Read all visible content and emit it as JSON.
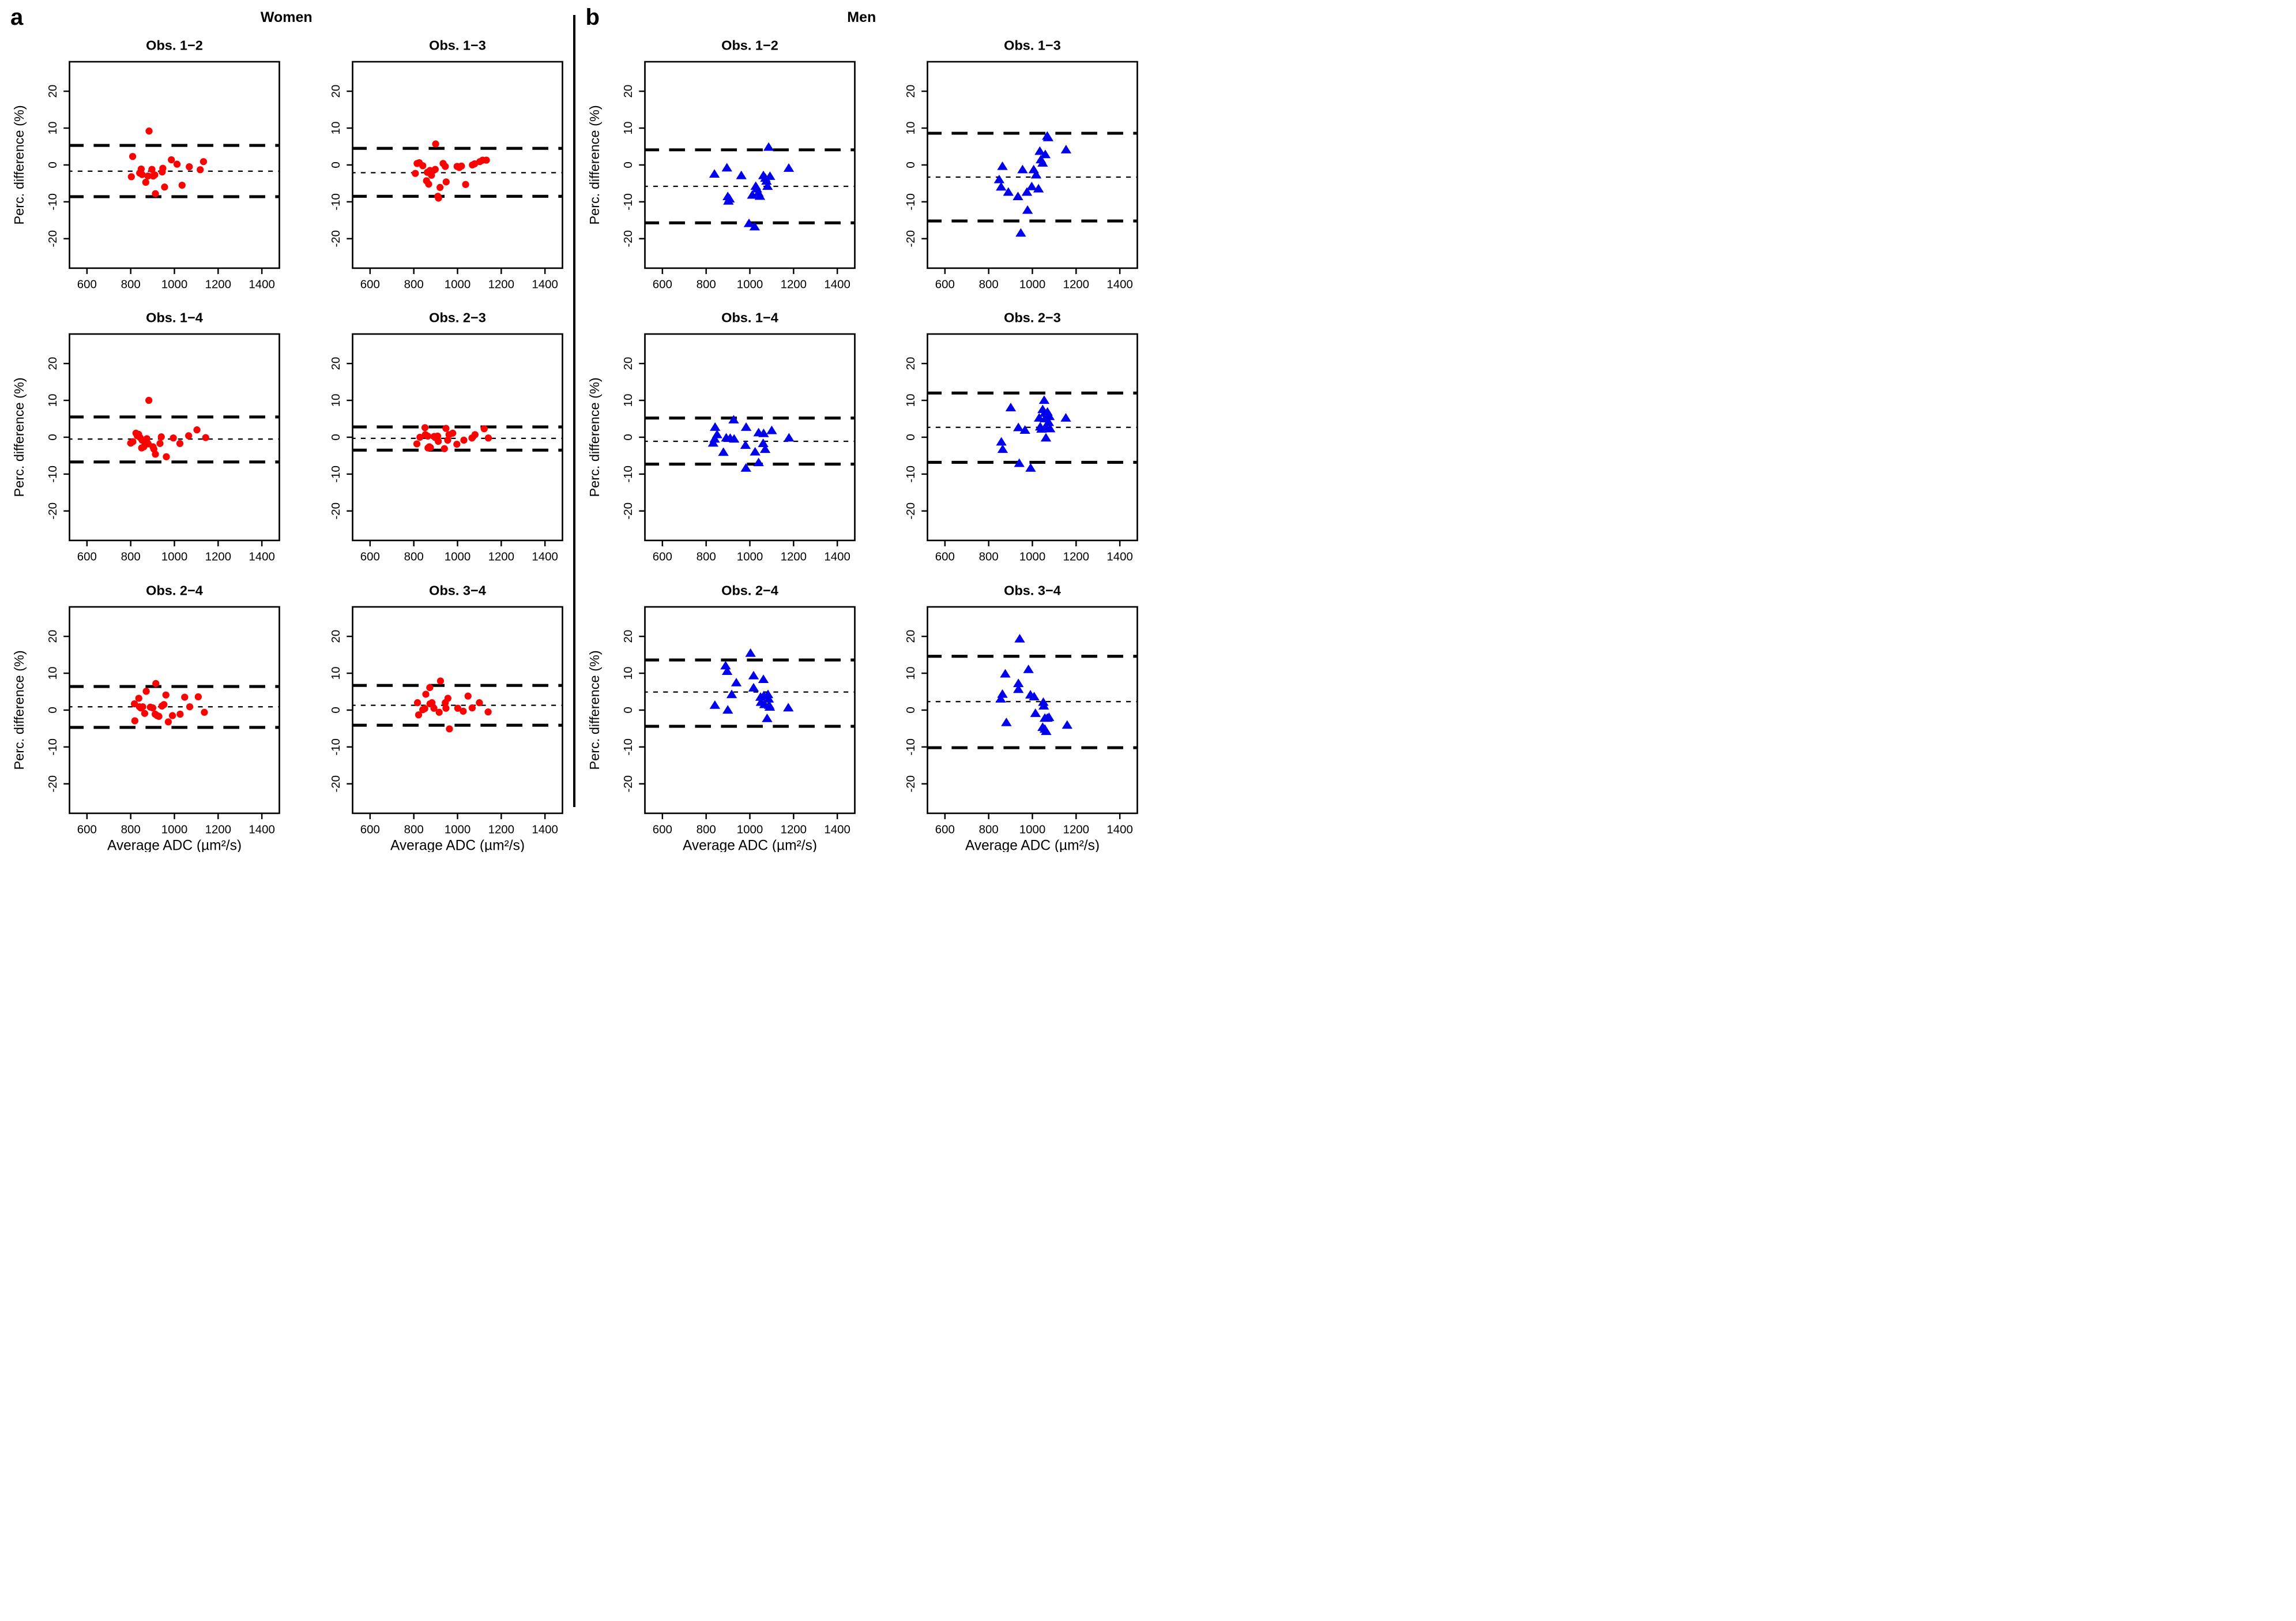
{
  "figure": {
    "panels": [
      {
        "id": "a",
        "letter": "a",
        "title": "Women",
        "marker": "circle",
        "color": "#ff0000"
      },
      {
        "id": "b",
        "letter": "b",
        "title": "Men",
        "marker": "triangle",
        "color": "#0000ee"
      }
    ],
    "axis": {
      "xlabel": "Average ADC (µm²/s)",
      "ylabel": "Perc. difference (%)",
      "xticks": [
        600,
        800,
        1000,
        1200,
        1400
      ],
      "yticks": [
        -20,
        -10,
        0,
        10,
        20
      ],
      "xlim": [
        520,
        1480
      ],
      "ylim": [
        -28,
        28
      ],
      "loa_line_color": "#000000",
      "mean_line_color": "#000000"
    }
  },
  "chart_data": [
    {
      "type": "scatter",
      "panel": "a",
      "title": "Obs. 1−2",
      "marker": "circle",
      "color": "#ff0000",
      "loa_upper": 5.3,
      "mean": -1.7,
      "loa_lower": -8.6,
      "show_ylabel": true,
      "show_xlabel": false,
      "points": [
        [
          884,
          9.2
        ],
        [
          809,
          2.3
        ],
        [
          803,
          -3.2
        ],
        [
          841,
          -2.2
        ],
        [
          848,
          -1.1
        ],
        [
          852,
          -2.6
        ],
        [
          869,
          -4.7
        ],
        [
          879,
          -3.0
        ],
        [
          897,
          -1.2
        ],
        [
          903,
          -3.0
        ],
        [
          910,
          -2.7
        ],
        [
          913,
          -7.8
        ],
        [
          944,
          -1.9
        ],
        [
          947,
          -0.9
        ],
        [
          955,
          -6.0
        ],
        [
          986,
          1.4
        ],
        [
          1012,
          0.2
        ],
        [
          1035,
          -5.5
        ],
        [
          1068,
          -0.5
        ],
        [
          1118,
          -1.3
        ],
        [
          1133,
          0.9
        ]
      ]
    },
    {
      "type": "scatter",
      "panel": "a",
      "title": "Obs. 1−3",
      "marker": "circle",
      "color": "#ff0000",
      "loa_upper": 4.5,
      "mean": -2.1,
      "loa_lower": -8.5,
      "show_ylabel": false,
      "show_xlabel": false,
      "points": [
        [
          900,
          5.7
        ],
        [
          815,
          0.4
        ],
        [
          825,
          0.6
        ],
        [
          841,
          -0.2
        ],
        [
          807,
          -2.3
        ],
        [
          862,
          -2.0
        ],
        [
          874,
          -1.5
        ],
        [
          881,
          -2.8
        ],
        [
          898,
          -1.2
        ],
        [
          858,
          -4.3
        ],
        [
          868,
          -5.2
        ],
        [
          910,
          -8.5
        ],
        [
          913,
          -9.0
        ],
        [
          920,
          -6.1
        ],
        [
          934,
          0.4
        ],
        [
          944,
          -0.4
        ],
        [
          948,
          -4.6
        ],
        [
          998,
          -0.4
        ],
        [
          1008,
          -0.7
        ],
        [
          1018,
          -0.3
        ],
        [
          1037,
          -5.3
        ],
        [
          1068,
          0.0
        ],
        [
          1078,
          0.3
        ],
        [
          1102,
          0.9
        ],
        [
          1115,
          1.3
        ],
        [
          1132,
          1.3
        ]
      ]
    },
    {
      "type": "scatter",
      "panel": "a",
      "title": "Obs. 1−4",
      "marker": "circle",
      "color": "#ff0000",
      "loa_upper": 5.5,
      "mean": -0.5,
      "loa_lower": -6.7,
      "show_ylabel": true,
      "show_xlabel": false,
      "points": [
        [
          883,
          10.0
        ],
        [
          800,
          -1.6
        ],
        [
          810,
          -1.2
        ],
        [
          824,
          1.1
        ],
        [
          830,
          0.4
        ],
        [
          836,
          0.8
        ],
        [
          843,
          -0.1
        ],
        [
          852,
          -0.8
        ],
        [
          850,
          -2.9
        ],
        [
          860,
          -2.6
        ],
        [
          866,
          -1.5
        ],
        [
          874,
          -0.4
        ],
        [
          880,
          -1.8
        ],
        [
          902,
          -2.6
        ],
        [
          906,
          -3.2
        ],
        [
          913,
          -4.6
        ],
        [
          934,
          -1.7
        ],
        [
          940,
          0.1
        ],
        [
          963,
          -5.3
        ],
        [
          995,
          -0.2
        ],
        [
          1025,
          -1.7
        ],
        [
          1065,
          0.4
        ],
        [
          1103,
          2.0
        ],
        [
          1143,
          -0.1
        ]
      ]
    },
    {
      "type": "scatter",
      "panel": "a",
      "title": "Obs. 2−3",
      "marker": "circle",
      "color": "#ff0000",
      "loa_upper": 2.8,
      "mean": -0.3,
      "loa_lower": -3.5,
      "show_ylabel": false,
      "show_xlabel": false,
      "points": [
        [
          814,
          -1.8
        ],
        [
          828,
          0.0
        ],
        [
          851,
          2.6
        ],
        [
          853,
          0.7
        ],
        [
          864,
          0.3
        ],
        [
          865,
          -2.9
        ],
        [
          871,
          -2.6
        ],
        [
          876,
          -2.8
        ],
        [
          893,
          0.2
        ],
        [
          898,
          -0.1
        ],
        [
          909,
          0.3
        ],
        [
          912,
          -1.1
        ],
        [
          940,
          -3.1
        ],
        [
          947,
          2.4
        ],
        [
          955,
          -0.8
        ],
        [
          961,
          0.7
        ],
        [
          978,
          1.1
        ],
        [
          997,
          -1.9
        ],
        [
          1029,
          -0.8
        ],
        [
          1066,
          -0.2
        ],
        [
          1080,
          0.7
        ],
        [
          1122,
          2.3
        ],
        [
          1141,
          -0.2
        ]
      ]
    },
    {
      "type": "scatter",
      "panel": "a",
      "title": "Obs. 2−4",
      "marker": "circle",
      "color": "#ff0000",
      "loa_upper": 6.4,
      "mean": 0.9,
      "loa_lower": -4.7,
      "show_ylabel": true,
      "show_xlabel": true,
      "points": [
        [
          817,
          1.7
        ],
        [
          819,
          -2.9
        ],
        [
          837,
          3.2
        ],
        [
          840,
          0.9
        ],
        [
          846,
          0.6
        ],
        [
          855,
          0.9
        ],
        [
          864,
          -0.9
        ],
        [
          871,
          5.1
        ],
        [
          890,
          0.8
        ],
        [
          901,
          0.6
        ],
        [
          915,
          7.2
        ],
        [
          912,
          -1.1
        ],
        [
          921,
          -1.5
        ],
        [
          929,
          -1.7
        ],
        [
          943,
          1.1
        ],
        [
          952,
          1.5
        ],
        [
          961,
          4.1
        ],
        [
          972,
          -3.2
        ],
        [
          991,
          -1.5
        ],
        [
          1026,
          -1.1
        ],
        [
          1047,
          3.5
        ],
        [
          1070,
          0.9
        ],
        [
          1109,
          3.6
        ],
        [
          1137,
          -0.6
        ]
      ]
    },
    {
      "type": "scatter",
      "panel": "a",
      "title": "Obs. 3−4",
      "marker": "circle",
      "color": "#ff0000",
      "loa_upper": 6.7,
      "mean": 1.3,
      "loa_lower": -4.1,
      "show_ylabel": false,
      "show_xlabel": true,
      "points": [
        [
          817,
          2.0
        ],
        [
          822,
          -1.3
        ],
        [
          841,
          0.1
        ],
        [
          850,
          0.4
        ],
        [
          855,
          4.3
        ],
        [
          873,
          6.1
        ],
        [
          874,
          1.7
        ],
        [
          883,
          2.0
        ],
        [
          892,
          0.5
        ],
        [
          916,
          -0.6
        ],
        [
          922,
          7.9
        ],
        [
          944,
          2.0
        ],
        [
          947,
          0.5
        ],
        [
          956,
          3.2
        ],
        [
          963,
          -5.1
        ],
        [
          1001,
          0.5
        ],
        [
          1026,
          -0.3
        ],
        [
          1048,
          3.8
        ],
        [
          1067,
          0.6
        ],
        [
          1100,
          2.0
        ],
        [
          1140,
          -0.5
        ]
      ]
    },
    {
      "type": "scatter",
      "panel": "b",
      "title": "Obs. 1−2",
      "marker": "triangle",
      "color": "#0000ee",
      "loa_upper": 4.1,
      "mean": -5.8,
      "loa_lower": -15.7,
      "show_ylabel": true,
      "show_xlabel": false,
      "points": [
        [
          838,
          -2.5
        ],
        [
          895,
          -0.8
        ],
        [
          899,
          -8.6
        ],
        [
          902,
          -9.8
        ],
        [
          907,
          -9.2
        ],
        [
          961,
          -2.9
        ],
        [
          996,
          -15.9
        ],
        [
          1011,
          -8.2
        ],
        [
          1022,
          -16.8
        ],
        [
          1027,
          -5.8
        ],
        [
          1032,
          -6.5
        ],
        [
          1039,
          -7.6
        ],
        [
          1046,
          -8.5
        ],
        [
          1062,
          -2.9
        ],
        [
          1071,
          -3.6
        ],
        [
          1076,
          -4.4
        ],
        [
          1081,
          -5.8
        ],
        [
          1086,
          4.8
        ],
        [
          1092,
          -3.1
        ],
        [
          1178,
          -0.9
        ]
      ]
    },
    {
      "type": "scatter",
      "panel": "b",
      "title": "Obs. 1−3",
      "marker": "triangle",
      "color": "#0000ee",
      "loa_upper": 8.6,
      "mean": -3.3,
      "loa_lower": -15.2,
      "show_ylabel": false,
      "show_xlabel": false,
      "points": [
        [
          863,
          -0.4
        ],
        [
          848,
          -4.0
        ],
        [
          857,
          -6.0
        ],
        [
          890,
          -7.4
        ],
        [
          934,
          -8.6
        ],
        [
          947,
          -18.5
        ],
        [
          955,
          -1.3
        ],
        [
          975,
          -7.4
        ],
        [
          978,
          -12.3
        ],
        [
          997,
          -5.9
        ],
        [
          1006,
          -1.3
        ],
        [
          1017,
          -2.7
        ],
        [
          1028,
          -6.5
        ],
        [
          1034,
          3.7
        ],
        [
          1039,
          1.4
        ],
        [
          1047,
          0.5
        ],
        [
          1059,
          2.8
        ],
        [
          1068,
          7.8
        ],
        [
          1072,
          7.4
        ],
        [
          1154,
          4.1
        ]
      ]
    },
    {
      "type": "scatter",
      "panel": "b",
      "title": "Obs. 1−4",
      "marker": "triangle",
      "color": "#0000ee",
      "loa_upper": 5.2,
      "mean": -1.1,
      "loa_lower": -7.3,
      "show_ylabel": true,
      "show_xlabel": false,
      "points": [
        [
          841,
          2.7
        ],
        [
          832,
          -1.6
        ],
        [
          850,
          0.7
        ],
        [
          839,
          -0.5
        ],
        [
          879,
          -4.1
        ],
        [
          892,
          -0.2
        ],
        [
          910,
          -0.3
        ],
        [
          926,
          4.7
        ],
        [
          928,
          -0.5
        ],
        [
          983,
          2.7
        ],
        [
          980,
          -2.2
        ],
        [
          982,
          -8.4
        ],
        [
          1024,
          -4.0
        ],
        [
          1040,
          1.2
        ],
        [
          1040,
          -6.9
        ],
        [
          1063,
          1.0
        ],
        [
          1061,
          -1.7
        ],
        [
          1070,
          -3.3
        ],
        [
          1100,
          1.8
        ],
        [
          1179,
          -0.2
        ]
      ]
    },
    {
      "type": "scatter",
      "panel": "b",
      "title": "Obs. 2−3",
      "marker": "triangle",
      "color": "#0000ee",
      "loa_upper": 12.0,
      "mean": 2.7,
      "loa_lower": -6.8,
      "show_ylabel": false,
      "show_xlabel": false,
      "points": [
        [
          858,
          -1.3
        ],
        [
          864,
          -3.3
        ],
        [
          901,
          8.0
        ],
        [
          936,
          2.6
        ],
        [
          940,
          -7.1
        ],
        [
          966,
          1.9
        ],
        [
          992,
          -8.4
        ],
        [
          1031,
          5.2
        ],
        [
          1036,
          2.8
        ],
        [
          1042,
          2.2
        ],
        [
          1047,
          7.5
        ],
        [
          1054,
          10.0
        ],
        [
          1056,
          6.5
        ],
        [
          1058,
          5.0
        ],
        [
          1060,
          2.8
        ],
        [
          1062,
          -0.2
        ],
        [
          1069,
          6.8
        ],
        [
          1075,
          4.0
        ],
        [
          1078,
          5.6
        ],
        [
          1081,
          2.3
        ],
        [
          1153,
          5.2
        ]
      ]
    },
    {
      "type": "scatter",
      "panel": "b",
      "title": "Obs. 2−4",
      "marker": "triangle",
      "color": "#0000ee",
      "loa_upper": 13.6,
      "mean": 4.9,
      "loa_lower": -4.4,
      "show_ylabel": true,
      "show_xlabel": true,
      "points": [
        [
          840,
          1.3
        ],
        [
          889,
          12.0
        ],
        [
          896,
          10.5
        ],
        [
          899,
          0.0
        ],
        [
          917,
          4.2
        ],
        [
          938,
          7.4
        ],
        [
          1003,
          15.4
        ],
        [
          1017,
          9.3
        ],
        [
          1017,
          6.0
        ],
        [
          1049,
          3.5
        ],
        [
          1051,
          2.1
        ],
        [
          1062,
          8.3
        ],
        [
          1064,
          3.9
        ],
        [
          1067,
          1.5
        ],
        [
          1079,
          -2.3
        ],
        [
          1083,
          4.2
        ],
        [
          1086,
          3.0
        ],
        [
          1088,
          1.3
        ],
        [
          1091,
          0.8
        ],
        [
          1176,
          0.6
        ]
      ]
    },
    {
      "type": "scatter",
      "panel": "b",
      "title": "Obs. 3−4",
      "marker": "triangle",
      "color": "#0000ee",
      "loa_upper": 14.6,
      "mean": 2.3,
      "loa_lower": -10.2,
      "show_ylabel": false,
      "show_xlabel": true,
      "points": [
        [
          942,
          19.3
        ],
        [
          876,
          9.8
        ],
        [
          982,
          11.0
        ],
        [
          936,
          7.2
        ],
        [
          936,
          5.6
        ],
        [
          863,
          4.3
        ],
        [
          855,
          3.0
        ],
        [
          991,
          4.1
        ],
        [
          1008,
          3.6
        ],
        [
          1050,
          2.1
        ],
        [
          1052,
          1.1
        ],
        [
          1014,
          -0.9
        ],
        [
          881,
          -3.4
        ],
        [
          1057,
          -2.2
        ],
        [
          1068,
          -2.2
        ],
        [
          1076,
          -2.0
        ],
        [
          1047,
          -4.7
        ],
        [
          1057,
          -5.2
        ],
        [
          1063,
          -5.8
        ],
        [
          1159,
          -4.1
        ]
      ]
    }
  ]
}
